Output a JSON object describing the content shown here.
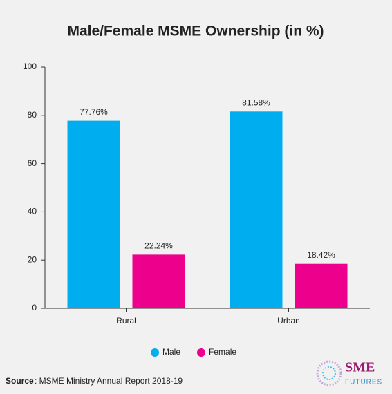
{
  "chart_data": {
    "type": "bar",
    "title": "Male/Female MSME Ownership (in %)",
    "categories": [
      "Rural",
      "Urban"
    ],
    "series": [
      {
        "name": "Male",
        "color": "#00aeef",
        "values": [
          77.76,
          81.58
        ],
        "value_labels": [
          "77.76%",
          "81.58%"
        ]
      },
      {
        "name": "Female",
        "color": "#ec008c",
        "values": [
          22.24,
          18.42
        ],
        "value_labels": [
          "22.24%",
          "18.42%"
        ]
      }
    ],
    "ylim": [
      0,
      100
    ],
    "yticks": [
      0,
      20,
      40,
      60,
      80,
      100
    ],
    "grid": false,
    "legend": "bottom"
  },
  "source": {
    "label": "Source",
    "text": ": MSME Ministry Annual Report 2018-19"
  },
  "logo": {
    "line1": "SME",
    "line2": "FUTURES"
  }
}
